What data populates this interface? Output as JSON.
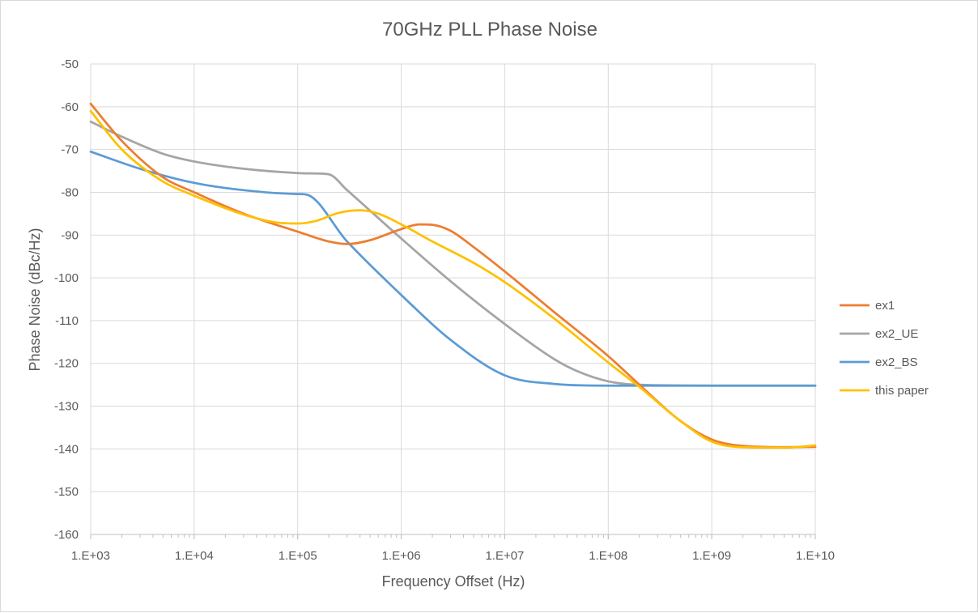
{
  "chart_data": {
    "type": "line",
    "title": "70GHz PLL Phase Noise",
    "xlabel": "Frequency Offset (Hz)",
    "ylabel": "Phase Noise (dBc/Hz)",
    "x_scale": "log",
    "xlim": [
      1000,
      10000000000
    ],
    "ylim": [
      -160,
      -50
    ],
    "x_ticks": [
      1000,
      10000,
      100000,
      1000000,
      10000000,
      100000000,
      1000000000,
      10000000000
    ],
    "x_tick_labels": [
      "1.E+03",
      "1.E+04",
      "1.E+05",
      "1.E+06",
      "1.E+07",
      "1.E+08",
      "1.E+09",
      "1.E+10"
    ],
    "y_ticks": [
      -50,
      -60,
      -70,
      -80,
      -90,
      -100,
      -110,
      -120,
      -130,
      -140,
      -150,
      -160
    ],
    "y_tick_labels": [
      "-50",
      "-60",
      "-70",
      "-80",
      "-90",
      "-100",
      "-110",
      "-120",
      "-130",
      "-140",
      "-150",
      "-160"
    ],
    "grid": true,
    "legend_position": "right",
    "series": [
      {
        "name": "ex1",
        "color": "#ED7D31",
        "points": [
          [
            1000,
            -59.3
          ],
          [
            2000,
            -68
          ],
          [
            5000,
            -76.5
          ],
          [
            10000,
            -80
          ],
          [
            30000,
            -85
          ],
          [
            100000,
            -89.2
          ],
          [
            200000,
            -91.5
          ],
          [
            300000,
            -92.1
          ],
          [
            500000,
            -91.2
          ],
          [
            1000000,
            -88.6
          ],
          [
            1500000,
            -87.5
          ],
          [
            2000000,
            -87.6
          ],
          [
            3000000,
            -89
          ],
          [
            5000000,
            -92.8
          ],
          [
            10000000,
            -98.5
          ],
          [
            30000000,
            -108
          ],
          [
            100000000,
            -118.3
          ],
          [
            200000000,
            -125
          ],
          [
            500000000,
            -133.5
          ],
          [
            1000000000,
            -137.8
          ],
          [
            2000000000,
            -139.3
          ],
          [
            5000000000,
            -139.6
          ],
          [
            10000000000,
            -139.5
          ]
        ]
      },
      {
        "name": "ex2_UE",
        "color": "#A5A5A5",
        "points": [
          [
            1000,
            -63.5
          ],
          [
            2000,
            -67
          ],
          [
            5000,
            -71
          ],
          [
            10000,
            -72.8
          ],
          [
            30000,
            -74.5
          ],
          [
            100000,
            -75.5
          ],
          [
            150000,
            -75.6
          ],
          [
            200000,
            -75.8
          ],
          [
            300000,
            -79.5
          ],
          [
            1000000,
            -90.8
          ],
          [
            3000000,
            -100.8
          ],
          [
            10000000,
            -110.8
          ],
          [
            30000000,
            -119
          ],
          [
            50000000,
            -121.8
          ],
          [
            100000000,
            -124.2
          ],
          [
            200000000,
            -125
          ],
          [
            1000000000,
            -125.2
          ],
          [
            10000000000,
            -125.2
          ]
        ]
      },
      {
        "name": "ex2_BS",
        "color": "#5B9BD5",
        "points": [
          [
            1000,
            -70.5
          ],
          [
            3000,
            -74.5
          ],
          [
            10000,
            -77.8
          ],
          [
            30000,
            -79.5
          ],
          [
            100000,
            -80.4
          ],
          [
            120000,
            -80.5
          ],
          [
            300000,
            -91.5
          ],
          [
            1000000,
            -104
          ],
          [
            3000000,
            -114.5
          ],
          [
            10000000,
            -122.8
          ],
          [
            30000000,
            -124.8
          ],
          [
            100000000,
            -125.2
          ],
          [
            1000000000,
            -125.2
          ],
          [
            10000000000,
            -125.2
          ]
        ]
      },
      {
        "name": "this paper",
        "color": "#FFC000",
        "points": [
          [
            1000,
            -61
          ],
          [
            2000,
            -70
          ],
          [
            5000,
            -77.5
          ],
          [
            10000,
            -80.8
          ],
          [
            30000,
            -85.2
          ],
          [
            60000,
            -87
          ],
          [
            100000,
            -87.3
          ],
          [
            150000,
            -86.7
          ],
          [
            250000,
            -84.8
          ],
          [
            400000,
            -84.2
          ],
          [
            600000,
            -85
          ],
          [
            1000000,
            -87.5
          ],
          [
            2000000,
            -91.5
          ],
          [
            5000000,
            -96.5
          ],
          [
            10000000,
            -101
          ],
          [
            30000000,
            -109.5
          ],
          [
            100000000,
            -119.8
          ],
          [
            200000000,
            -125.5
          ],
          [
            500000000,
            -133.5
          ],
          [
            1000000000,
            -138.3
          ],
          [
            2000000000,
            -139.6
          ],
          [
            5000000000,
            -139.7
          ],
          [
            10000000000,
            -139.2
          ]
        ]
      }
    ]
  }
}
